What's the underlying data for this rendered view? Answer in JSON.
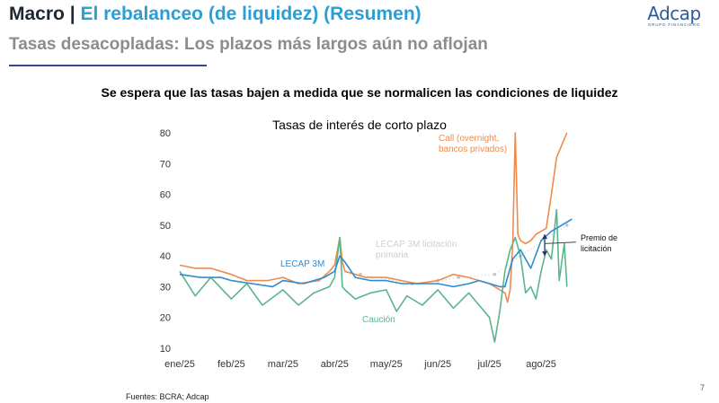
{
  "header": {
    "prefix": "Macro",
    "separator": "|",
    "title": "El rebalanceo (de liquidez) (Resumen)",
    "subtitle": "Tasas desacopladas: Los plazos más largos aún no aflojan"
  },
  "logo": {
    "name": "Adcap",
    "tagline": "GRUPO FINANCIERO"
  },
  "footer": {
    "source": "Fuentes: BCRA; Adcap",
    "page_number": "7"
  },
  "colors": {
    "title_blue": "#2a9fd6",
    "call": "#f08a4b",
    "lecap": "#2e8bd0",
    "caucion": "#5bb58c",
    "lecap_lic": "#c8c8c8",
    "premio": "#1f3564"
  },
  "chart_data": {
    "type": "line",
    "headline": "Se espera que las tasas bajen a medida que se normalicen las condiciones de liquidez",
    "title": "Tasas de interés de corto plazo",
    "xlabel": "",
    "ylabel": "",
    "ylim": [
      10,
      80
    ],
    "yticks": [
      10,
      20,
      30,
      40,
      50,
      60,
      70,
      80
    ],
    "xlim": [
      0,
      7.8
    ],
    "xticks": [
      {
        "label": "ene/25",
        "x": 0
      },
      {
        "label": "feb/25",
        "x": 1
      },
      {
        "label": "mar/25",
        "x": 2
      },
      {
        "label": "abr/25",
        "x": 3
      },
      {
        "label": "may/25",
        "x": 4
      },
      {
        "label": "jun/25",
        "x": 5
      },
      {
        "label": "jul/25",
        "x": 6
      },
      {
        "label": "ago/25",
        "x": 7
      }
    ],
    "series": [
      {
        "name": "Call (overnight, bancos privados)",
        "label_lines": [
          "Call (overnight,",
          "bancos privados)"
        ],
        "color": "#f08a4b",
        "x": [
          0,
          0.3,
          0.6,
          1.0,
          1.3,
          1.7,
          2.0,
          2.3,
          2.7,
          2.9,
          3.0,
          3.1,
          3.15,
          3.2,
          3.4,
          3.6,
          4.0,
          4.3,
          4.6,
          5.0,
          5.3,
          5.6,
          5.8,
          6.0,
          6.1,
          6.2,
          6.3,
          6.35,
          6.4,
          6.45,
          6.5,
          6.55,
          6.6,
          6.7,
          6.8,
          6.9,
          7.0,
          7.1,
          7.2,
          7.3,
          7.4,
          7.5
        ],
        "y": [
          37,
          36,
          36,
          34,
          32,
          32,
          33,
          31,
          32,
          35,
          37,
          46,
          38,
          35,
          34,
          33,
          33,
          32,
          31,
          32,
          34,
          33,
          32,
          31,
          30,
          29,
          28,
          25,
          29,
          44,
          80,
          47,
          45,
          44,
          45,
          47,
          48,
          49,
          60,
          72,
          76,
          80
        ]
      },
      {
        "name": "LECAP 3M",
        "label_lines": [
          "LECAP 3M"
        ],
        "color": "#2e8bd0",
        "x": [
          0,
          0.4,
          0.8,
          1.0,
          1.4,
          1.8,
          2.0,
          2.4,
          2.8,
          3.0,
          3.1,
          3.2,
          3.4,
          3.7,
          4.0,
          4.3,
          4.6,
          5.0,
          5.3,
          5.6,
          5.8,
          6.0,
          6.2,
          6.3,
          6.45,
          6.6,
          6.8,
          7.0,
          7.2,
          7.4,
          7.6
        ],
        "y": [
          34,
          33,
          33,
          32,
          31,
          30,
          32,
          31,
          33,
          35,
          40,
          38,
          33,
          32,
          32,
          31,
          31,
          31,
          30,
          31,
          32,
          31,
          30,
          30,
          39,
          42,
          36,
          45,
          48,
          50,
          52
        ]
      },
      {
        "name": "LECAP 3M licitación primaria",
        "label_lines": [
          "LECAP 3M licitación",
          "primaria"
        ],
        "color": "#c8c8c8",
        "x": [
          3.5,
          4.5,
          5.0,
          5.4,
          6.1,
          6.6,
          7.5
        ],
        "y": [
          34,
          31,
          32,
          33,
          34,
          40,
          50
        ]
      },
      {
        "name": "Caución",
        "label_lines": [
          "Caución"
        ],
        "color": "#5bb58c",
        "x": [
          0,
          0.3,
          0.6,
          1.0,
          1.3,
          1.6,
          2.0,
          2.3,
          2.6,
          2.9,
          3.0,
          3.1,
          3.15,
          3.2,
          3.4,
          3.7,
          4.0,
          4.2,
          4.4,
          4.7,
          5.0,
          5.3,
          5.6,
          5.8,
          6.0,
          6.1,
          6.2,
          6.3,
          6.4,
          6.5,
          6.6,
          6.7,
          6.8,
          6.9,
          7.0,
          7.1,
          7.2,
          7.3,
          7.35,
          7.45,
          7.5
        ],
        "y": [
          35,
          27,
          33,
          26,
          31,
          24,
          29,
          24,
          28,
          30,
          33,
          46,
          30,
          29,
          26,
          28,
          29,
          22,
          27,
          24,
          29,
          23,
          28,
          24,
          20,
          12,
          22,
          35,
          42,
          46,
          40,
          28,
          30,
          26,
          35,
          42,
          39,
          55,
          32,
          44,
          30
        ]
      }
    ],
    "annotations": [
      {
        "id": "premio",
        "label_lines": [
          "Premio de",
          "licitación"
        ],
        "from": [
          7.07,
          40
        ],
        "to": [
          7.07,
          47
        ],
        "line_to": [
          7.5,
          44.5
        ]
      }
    ]
  }
}
